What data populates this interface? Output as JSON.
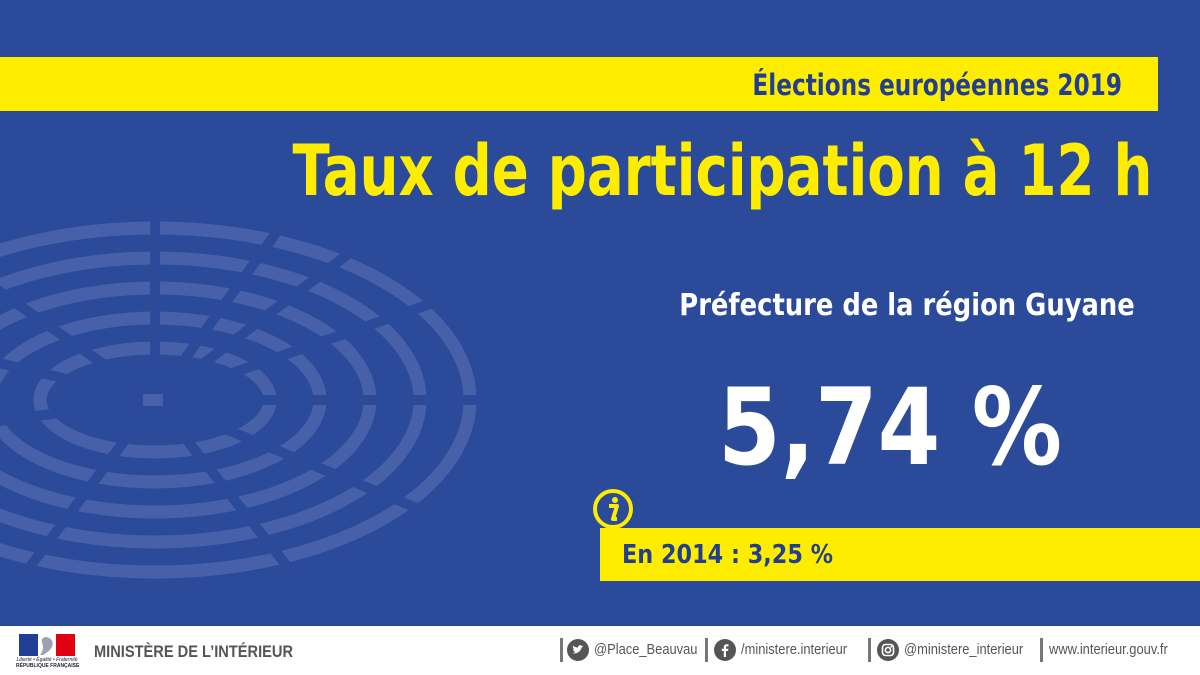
{
  "header": {
    "election_label": "Élections européennes 2019",
    "title": "Taux de participation à 12 h"
  },
  "result": {
    "region": "Préfecture de la région Guyane",
    "rate_label": "5,74 %",
    "rate_value": 5.74,
    "previous_label": "En 2014 : 3,25 %",
    "previous_value": 3.25
  },
  "footer": {
    "ministry": "MINISTÈRE DE L’INTÉRIEUR",
    "logo": {
      "motto": "Liberté • Égalité • Fraternité",
      "republic": "RÉPUBLIQUE FRANÇAISE"
    },
    "links": [
      {
        "icon": "twitter-icon",
        "label": "@Place_Beauvau"
      },
      {
        "icon": "facebook-icon",
        "label": "/ministere.interieur"
      },
      {
        "icon": "instagram-icon",
        "label": "@ministere_interieur"
      },
      {
        "icon": "",
        "label": "www.interieur.gouv.fr"
      }
    ]
  },
  "colors": {
    "background": "#2b4a9a",
    "accent_yellow": "#ffed00",
    "text_blue": "#223f8f",
    "footer_gray": "#555555"
  }
}
